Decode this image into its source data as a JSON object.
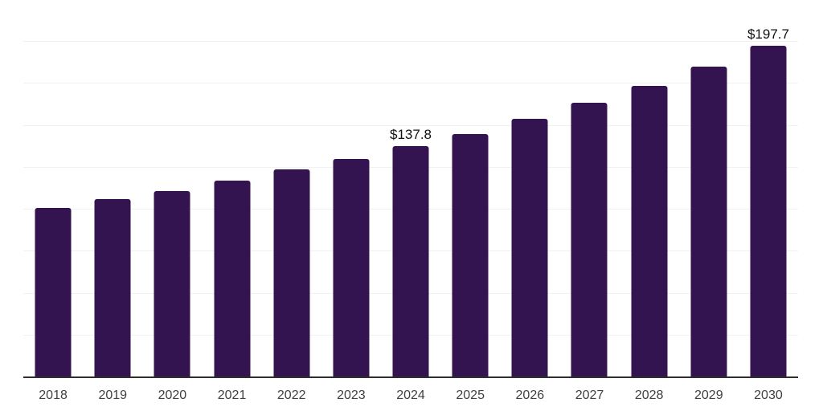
{
  "chart_data": {
    "type": "bar",
    "title": "",
    "xlabel": "",
    "ylabel": "",
    "categories": [
      "2018",
      "2019",
      "2020",
      "2021",
      "2022",
      "2023",
      "2024",
      "2025",
      "2026",
      "2027",
      "2028",
      "2029",
      "2030"
    ],
    "values": [
      100.9,
      106.1,
      111.2,
      117.3,
      124.0,
      130.3,
      137.8,
      145.3,
      154.0,
      163.6,
      173.9,
      185.1,
      197.7
    ],
    "data_labels": {
      "2024": "$137.8",
      "2030": "$197.7"
    },
    "ylim": [
      0,
      225
    ],
    "grid_step": 25,
    "grid": true,
    "legend": false,
    "colors": {
      "bar": "#341450",
      "gridline": "#f1f1f3",
      "axis": "#2e2e2e",
      "tick_label": "#404040",
      "value_label": "#111111",
      "background": "#ffffff"
    }
  }
}
